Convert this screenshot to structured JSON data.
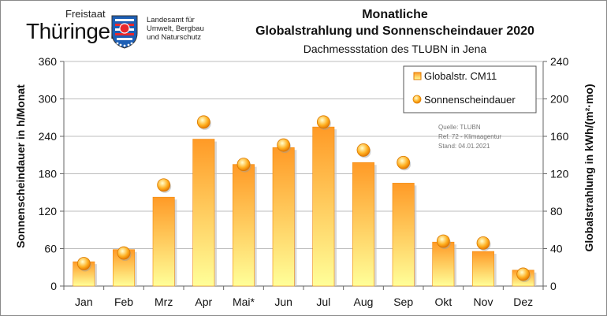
{
  "logo": {
    "line1": "Freistaat",
    "line2": "Thüringen",
    "agency": [
      "Landesamt für",
      "Umwelt, Bergbau",
      "und Naturschutz"
    ]
  },
  "chart_data": {
    "type": "bar",
    "title_line1": "Monatliche",
    "title_line2": "Globalstrahlung und Sonnenscheindauer 2020",
    "subtitle": "Dachmessstation des TLUBN in Jena",
    "categories": [
      "Jan",
      "Feb",
      "Mrz",
      "Apr",
      "Mai*",
      "Jun",
      "Jul",
      "Aug",
      "Sep",
      "Okt",
      "Nov",
      "Dez"
    ],
    "y_left": {
      "label": "Sonnenscheindauer in h/Monat",
      "min": 0,
      "max": 360,
      "ticks": [
        0,
        60,
        120,
        180,
        240,
        300,
        360
      ]
    },
    "y_right": {
      "label": "Globalstrahlung in kWh/(m²·mo)",
      "min": 0,
      "max": 240,
      "ticks": [
        0,
        40,
        80,
        120,
        160,
        200,
        240
      ]
    },
    "series": [
      {
        "name": "Globalstr. CM11",
        "type": "bar",
        "axis": "right",
        "values": [
          26,
          39,
          95,
          157,
          130,
          148,
          170,
          132,
          110,
          47,
          37,
          17
        ]
      },
      {
        "name": "Sonnenscheindauer",
        "type": "point",
        "axis": "left",
        "values": [
          36,
          53,
          162,
          263,
          195,
          226,
          263,
          218,
          198,
          72,
          69,
          19
        ]
      }
    ],
    "grid": true,
    "legend_position": "top-right",
    "source_note": [
      "Quelle: TLUBN",
      "Ref. 72 - Klimaagentur",
      "Stand: 04.01.2021"
    ],
    "colors": {
      "bar_top": "#ff9a26",
      "bar_bottom": "#ffff99",
      "dot": "#ffb020"
    }
  }
}
